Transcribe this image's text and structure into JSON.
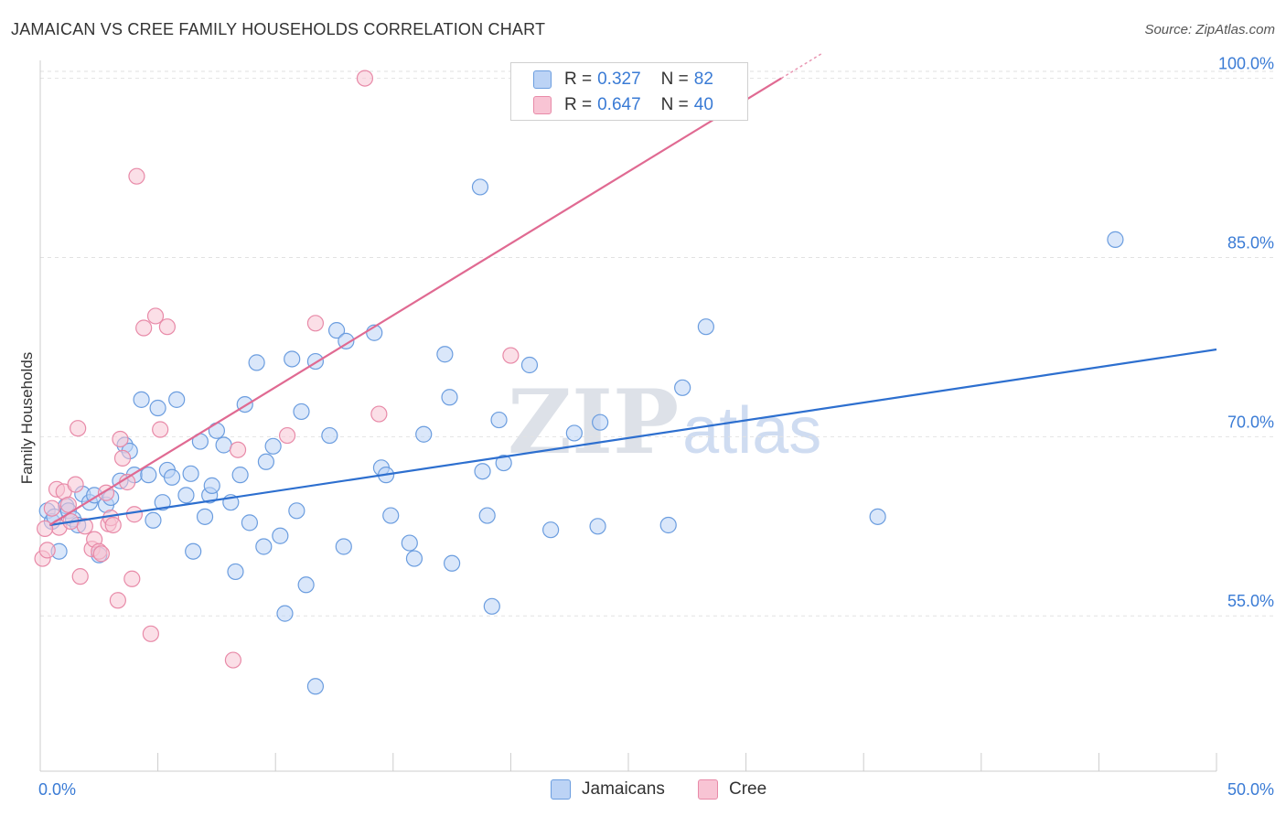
{
  "title": "JAMAICAN VS CREE FAMILY HOUSEHOLDS CORRELATION CHART",
  "source": "Source: ZipAtlas.com",
  "watermark": {
    "zip": "ZIP",
    "atlas": "atlas"
  },
  "colors": {
    "jamaicans_fill": "#bcd3f5",
    "jamaicans_stroke": "#6b9ddf",
    "jamaicans_line": "#2d6fcf",
    "cree_fill": "#f8c4d4",
    "cree_stroke": "#e88aa8",
    "cree_line": "#e06a92",
    "axis_label": "#3a7bd5",
    "grid": "#e2e2e2"
  },
  "legend": {
    "rows": [
      {
        "r_label": "R = ",
        "r_value": "0.327",
        "n_label": "N = ",
        "n_value": "82"
      },
      {
        "r_label": "R = ",
        "r_value": "0.647",
        "n_label": "N = ",
        "n_value": "40"
      }
    ]
  },
  "bottom_legend": {
    "jamaicans": "Jamaicans",
    "cree": "Cree"
  },
  "chart_data": {
    "type": "scatter",
    "title": "JAMAICAN VS CREE FAMILY HOUSEHOLDS CORRELATION CHART",
    "xlabel": "",
    "ylabel": "Family Households",
    "xlim": [
      0,
      50
    ],
    "ylim": [
      42,
      101.5
    ],
    "x_tick_labels": [
      "0.0%",
      "50.0%"
    ],
    "y_ticks": [
      55,
      70,
      85,
      100
    ],
    "y_tick_labels": [
      "55.0%",
      "70.0%",
      "85.0%",
      "100.0%"
    ],
    "grid": true,
    "series": [
      {
        "name": "Jamaicans",
        "r": 0.327,
        "n": 82,
        "trend": {
          "x": [
            0.4,
            50.0
          ],
          "y": [
            62.6,
            77.3
          ]
        },
        "points": [
          [
            0.3,
            63.8
          ],
          [
            0.5,
            62.9
          ],
          [
            0.6,
            63.3
          ],
          [
            0.8,
            60.4
          ],
          [
            1.1,
            64.2
          ],
          [
            1.2,
            63.8
          ],
          [
            1.4,
            63.1
          ],
          [
            1.6,
            62.6
          ],
          [
            1.8,
            65.2
          ],
          [
            2.1,
            64.5
          ],
          [
            2.3,
            65.1
          ],
          [
            2.5,
            60.1
          ],
          [
            2.8,
            64.3
          ],
          [
            3.0,
            64.9
          ],
          [
            3.4,
            66.3
          ],
          [
            3.6,
            69.3
          ],
          [
            3.8,
            68.8
          ],
          [
            4.0,
            66.8
          ],
          [
            4.3,
            73.1
          ],
          [
            4.6,
            66.8
          ],
          [
            4.8,
            63.0
          ],
          [
            5.0,
            72.4
          ],
          [
            5.2,
            64.5
          ],
          [
            5.4,
            67.2
          ],
          [
            5.6,
            66.6
          ],
          [
            5.8,
            73.1
          ],
          [
            6.2,
            65.1
          ],
          [
            6.4,
            66.9
          ],
          [
            6.5,
            60.4
          ],
          [
            6.8,
            69.6
          ],
          [
            7.0,
            63.3
          ],
          [
            7.2,
            65.1
          ],
          [
            7.3,
            65.9
          ],
          [
            7.5,
            70.5
          ],
          [
            7.8,
            69.3
          ],
          [
            8.1,
            64.5
          ],
          [
            8.3,
            58.7
          ],
          [
            8.5,
            66.8
          ],
          [
            8.7,
            72.7
          ],
          [
            8.9,
            62.8
          ],
          [
            9.2,
            76.2
          ],
          [
            9.5,
            60.8
          ],
          [
            9.6,
            67.9
          ],
          [
            9.9,
            69.2
          ],
          [
            10.2,
            61.7
          ],
          [
            10.4,
            55.2
          ],
          [
            10.7,
            76.5
          ],
          [
            10.9,
            63.8
          ],
          [
            11.1,
            72.1
          ],
          [
            11.3,
            57.6
          ],
          [
            11.7,
            76.3
          ],
          [
            12.3,
            70.1
          ],
          [
            12.6,
            78.9
          ],
          [
            12.9,
            60.8
          ],
          [
            13.0,
            78.0
          ],
          [
            14.2,
            78.7
          ],
          [
            14.5,
            67.4
          ],
          [
            14.7,
            66.8
          ],
          [
            14.9,
            63.4
          ],
          [
            15.7,
            61.1
          ],
          [
            15.9,
            59.8
          ],
          [
            16.3,
            70.2
          ],
          [
            17.2,
            76.9
          ],
          [
            17.4,
            73.3
          ],
          [
            17.5,
            59.4
          ],
          [
            18.7,
            90.9
          ],
          [
            18.8,
            67.1
          ],
          [
            19.0,
            63.4
          ],
          [
            19.2,
            55.8
          ],
          [
            19.5,
            71.4
          ],
          [
            19.7,
            67.8
          ],
          [
            20.8,
            76.0
          ],
          [
            21.7,
            62.2
          ],
          [
            22.7,
            70.3
          ],
          [
            23.7,
            62.5
          ],
          [
            23.8,
            71.2
          ],
          [
            26.7,
            62.6
          ],
          [
            27.3,
            74.1
          ],
          [
            28.3,
            79.2
          ],
          [
            35.6,
            63.3
          ],
          [
            45.7,
            86.5
          ],
          [
            11.7,
            49.1
          ]
        ]
      },
      {
        "name": "Cree",
        "r": 0.647,
        "n": 40,
        "trend": {
          "x": [
            0.4,
            31.5
          ],
          "y": [
            62.6,
            100.0
          ]
        },
        "points": [
          [
            0.1,
            59.8
          ],
          [
            0.3,
            60.5
          ],
          [
            0.5,
            64.0
          ],
          [
            0.7,
            65.6
          ],
          [
            0.8,
            62.4
          ],
          [
            1.0,
            65.4
          ],
          [
            1.2,
            64.3
          ],
          [
            1.3,
            62.9
          ],
          [
            1.5,
            66.0
          ],
          [
            1.6,
            70.7
          ],
          [
            1.7,
            58.3
          ],
          [
            1.9,
            62.5
          ],
          [
            2.2,
            60.6
          ],
          [
            2.3,
            61.4
          ],
          [
            2.5,
            60.4
          ],
          [
            2.8,
            65.3
          ],
          [
            2.9,
            62.7
          ],
          [
            3.0,
            63.2
          ],
          [
            3.1,
            62.6
          ],
          [
            3.3,
            56.3
          ],
          [
            3.4,
            69.8
          ],
          [
            3.5,
            68.2
          ],
          [
            3.7,
            66.2
          ],
          [
            3.9,
            58.1
          ],
          [
            4.0,
            63.5
          ],
          [
            4.1,
            91.8
          ],
          [
            4.4,
            79.1
          ],
          [
            4.7,
            53.5
          ],
          [
            4.9,
            80.1
          ],
          [
            5.1,
            70.6
          ],
          [
            5.4,
            79.2
          ],
          [
            8.2,
            51.3
          ],
          [
            8.4,
            68.9
          ],
          [
            10.5,
            70.1
          ],
          [
            11.7,
            79.5
          ],
          [
            13.8,
            100.0
          ],
          [
            14.4,
            71.9
          ],
          [
            20.0,
            76.8
          ],
          [
            0.2,
            62.3
          ],
          [
            2.6,
            60.2
          ]
        ]
      }
    ]
  }
}
